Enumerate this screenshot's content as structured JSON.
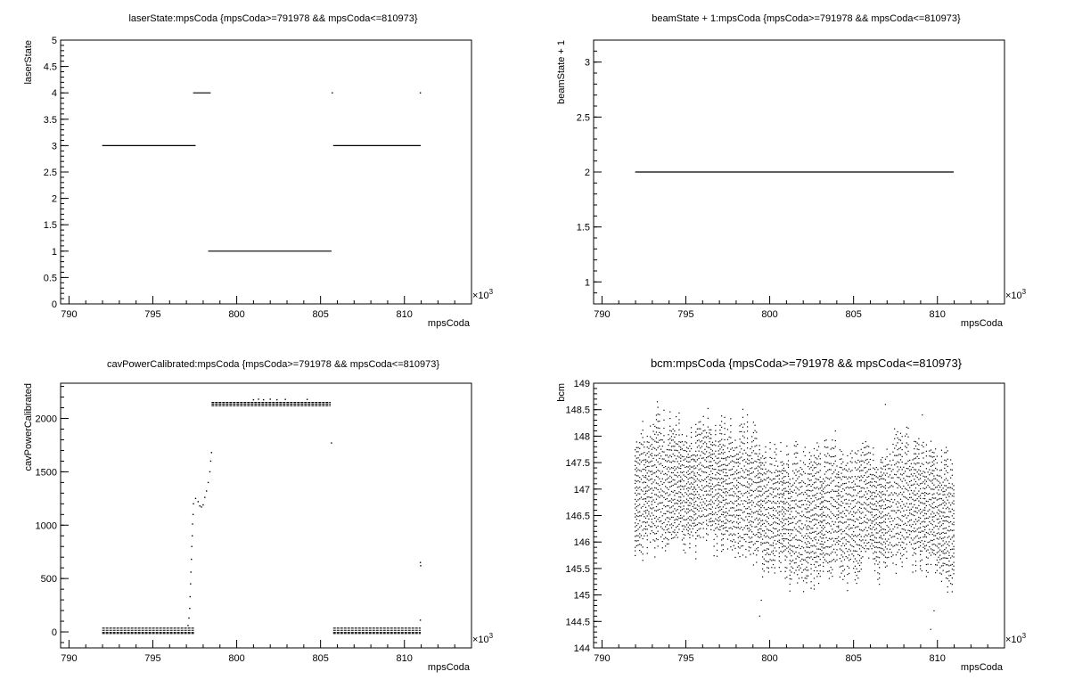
{
  "chart_data": [
    {
      "type": "scatter",
      "title": "laserState:mpsCoda {mpsCoda>=791978 && mpsCoda<=810973}",
      "xlabel": "mpsCoda",
      "ylabel": "laserState",
      "x_exponent": "×10",
      "x_exponent_power": "3",
      "xlim": [
        789.5,
        814
      ],
      "ylim": [
        0,
        5
      ],
      "xticks": [
        "790",
        "795",
        "800",
        "805",
        "810"
      ],
      "yticks": [
        "0",
        "0.5",
        "1",
        "1.5",
        "2",
        "2.5",
        "3",
        "3.5",
        "4",
        "4.5",
        "5"
      ],
      "grid": false,
      "segments": [
        {
          "x_start": 791.978,
          "x_end": 797.55,
          "y": 3
        },
        {
          "x_start": 797.4,
          "x_end": 798.45,
          "y": 4
        },
        {
          "x_start": 798.3,
          "x_end": 805.65,
          "y": 1
        },
        {
          "x_start": 805.75,
          "x_end": 810.973,
          "y": 3
        }
      ],
      "points": [
        {
          "x": 805.7,
          "y": 4
        },
        {
          "x": 810.95,
          "y": 4
        }
      ]
    },
    {
      "type": "scatter",
      "title": "beamState + 1:mpsCoda {mpsCoda>=791978 && mpsCoda<=810973}",
      "xlabel": "mpsCoda",
      "ylabel": "beamState + 1",
      "x_exponent": "×10",
      "x_exponent_power": "3",
      "xlim": [
        789.5,
        814
      ],
      "ylim": [
        0.8,
        3.2
      ],
      "xticks": [
        "790",
        "795",
        "800",
        "805",
        "810"
      ],
      "yticks": [
        "1",
        "1.5",
        "2",
        "2.5",
        "3"
      ],
      "grid": false,
      "segments": [
        {
          "x_start": 791.978,
          "x_end": 810.973,
          "y": 2
        }
      ],
      "points": []
    },
    {
      "type": "scatter",
      "title": "cavPowerCalibrated:mpsCoda {mpsCoda>=791978 && mpsCoda<=810973}",
      "xlabel": "mpsCoda",
      "ylabel": "cavPowerCalibrated",
      "x_exponent": "×10",
      "x_exponent_power": "3",
      "xlim": [
        789.5,
        814
      ],
      "ylim": [
        -150,
        2330
      ],
      "xticks": [
        "790",
        "795",
        "800",
        "805",
        "810"
      ],
      "yticks": [
        "0",
        "500",
        "1000",
        "1500",
        "2000"
      ],
      "grid": false,
      "bands": [
        {
          "x_start": 791.978,
          "x_end": 797.5,
          "y_values": [
            35,
            15,
            -5,
            -15
          ]
        },
        {
          "x_start": 798.5,
          "x_end": 805.6,
          "y_values": [
            2150,
            2135,
            2120
          ]
        },
        {
          "x_start": 805.75,
          "x_end": 810.973,
          "y_values": [
            35,
            15,
            -5,
            -15
          ]
        }
      ],
      "points": [
        {
          "x": 801.0,
          "y": 2175
        },
        {
          "x": 801.3,
          "y": 2180
        },
        {
          "x": 801.6,
          "y": 2175
        },
        {
          "x": 802.0,
          "y": 2180
        },
        {
          "x": 802.4,
          "y": 2175
        },
        {
          "x": 802.9,
          "y": 2178
        },
        {
          "x": 804.2,
          "y": 2178
        },
        {
          "x": 797.55,
          "y": 1250
        },
        {
          "x": 797.7,
          "y": 1220
        },
        {
          "x": 797.8,
          "y": 1180
        },
        {
          "x": 797.9,
          "y": 1170
        },
        {
          "x": 798.0,
          "y": 1190
        },
        {
          "x": 798.1,
          "y": 1260
        },
        {
          "x": 798.2,
          "y": 1320
        },
        {
          "x": 798.3,
          "y": 1400
        },
        {
          "x": 798.4,
          "y": 1500
        },
        {
          "x": 798.45,
          "y": 1600
        },
        {
          "x": 798.5,
          "y": 1680
        },
        {
          "x": 805.65,
          "y": 1770
        },
        {
          "x": 810.95,
          "y": 650
        },
        {
          "x": 810.97,
          "y": 620
        },
        {
          "x": 810.95,
          "y": 110
        }
      ],
      "transition": [
        {
          "x": 797.1,
          "y": 60
        },
        {
          "x": 797.15,
          "y": 130
        },
        {
          "x": 797.2,
          "y": 220
        },
        {
          "x": 797.22,
          "y": 330
        },
        {
          "x": 797.25,
          "y": 450
        },
        {
          "x": 797.27,
          "y": 560
        },
        {
          "x": 797.3,
          "y": 680
        },
        {
          "x": 797.32,
          "y": 800
        },
        {
          "x": 797.35,
          "y": 900
        },
        {
          "x": 797.37,
          "y": 1010
        },
        {
          "x": 797.4,
          "y": 1100
        },
        {
          "x": 797.42,
          "y": 1200
        }
      ]
    },
    {
      "type": "scatter",
      "title": "bcm:mpsCoda {mpsCoda>=791978 && mpsCoda<=810973}",
      "xlabel": "mpsCoda",
      "ylabel": "bcm",
      "x_exponent": "×10",
      "x_exponent_power": "3",
      "xlim": [
        789.5,
        814
      ],
      "ylim": [
        144,
        149
      ],
      "xticks": [
        "790",
        "795",
        "800",
        "805",
        "810"
      ],
      "yticks": [
        "144",
        "144.5",
        "145",
        "145.5",
        "146",
        "146.5",
        "147",
        "147.5",
        "148",
        "148.5",
        "149"
      ],
      "grid": false,
      "x_range": [
        791.978,
        810.973
      ],
      "center": 146.75,
      "points_note_values": {
        "typical_low": 145.7,
        "typical_high": 147.9,
        "min": 144.35,
        "max": 148.65
      }
    }
  ]
}
